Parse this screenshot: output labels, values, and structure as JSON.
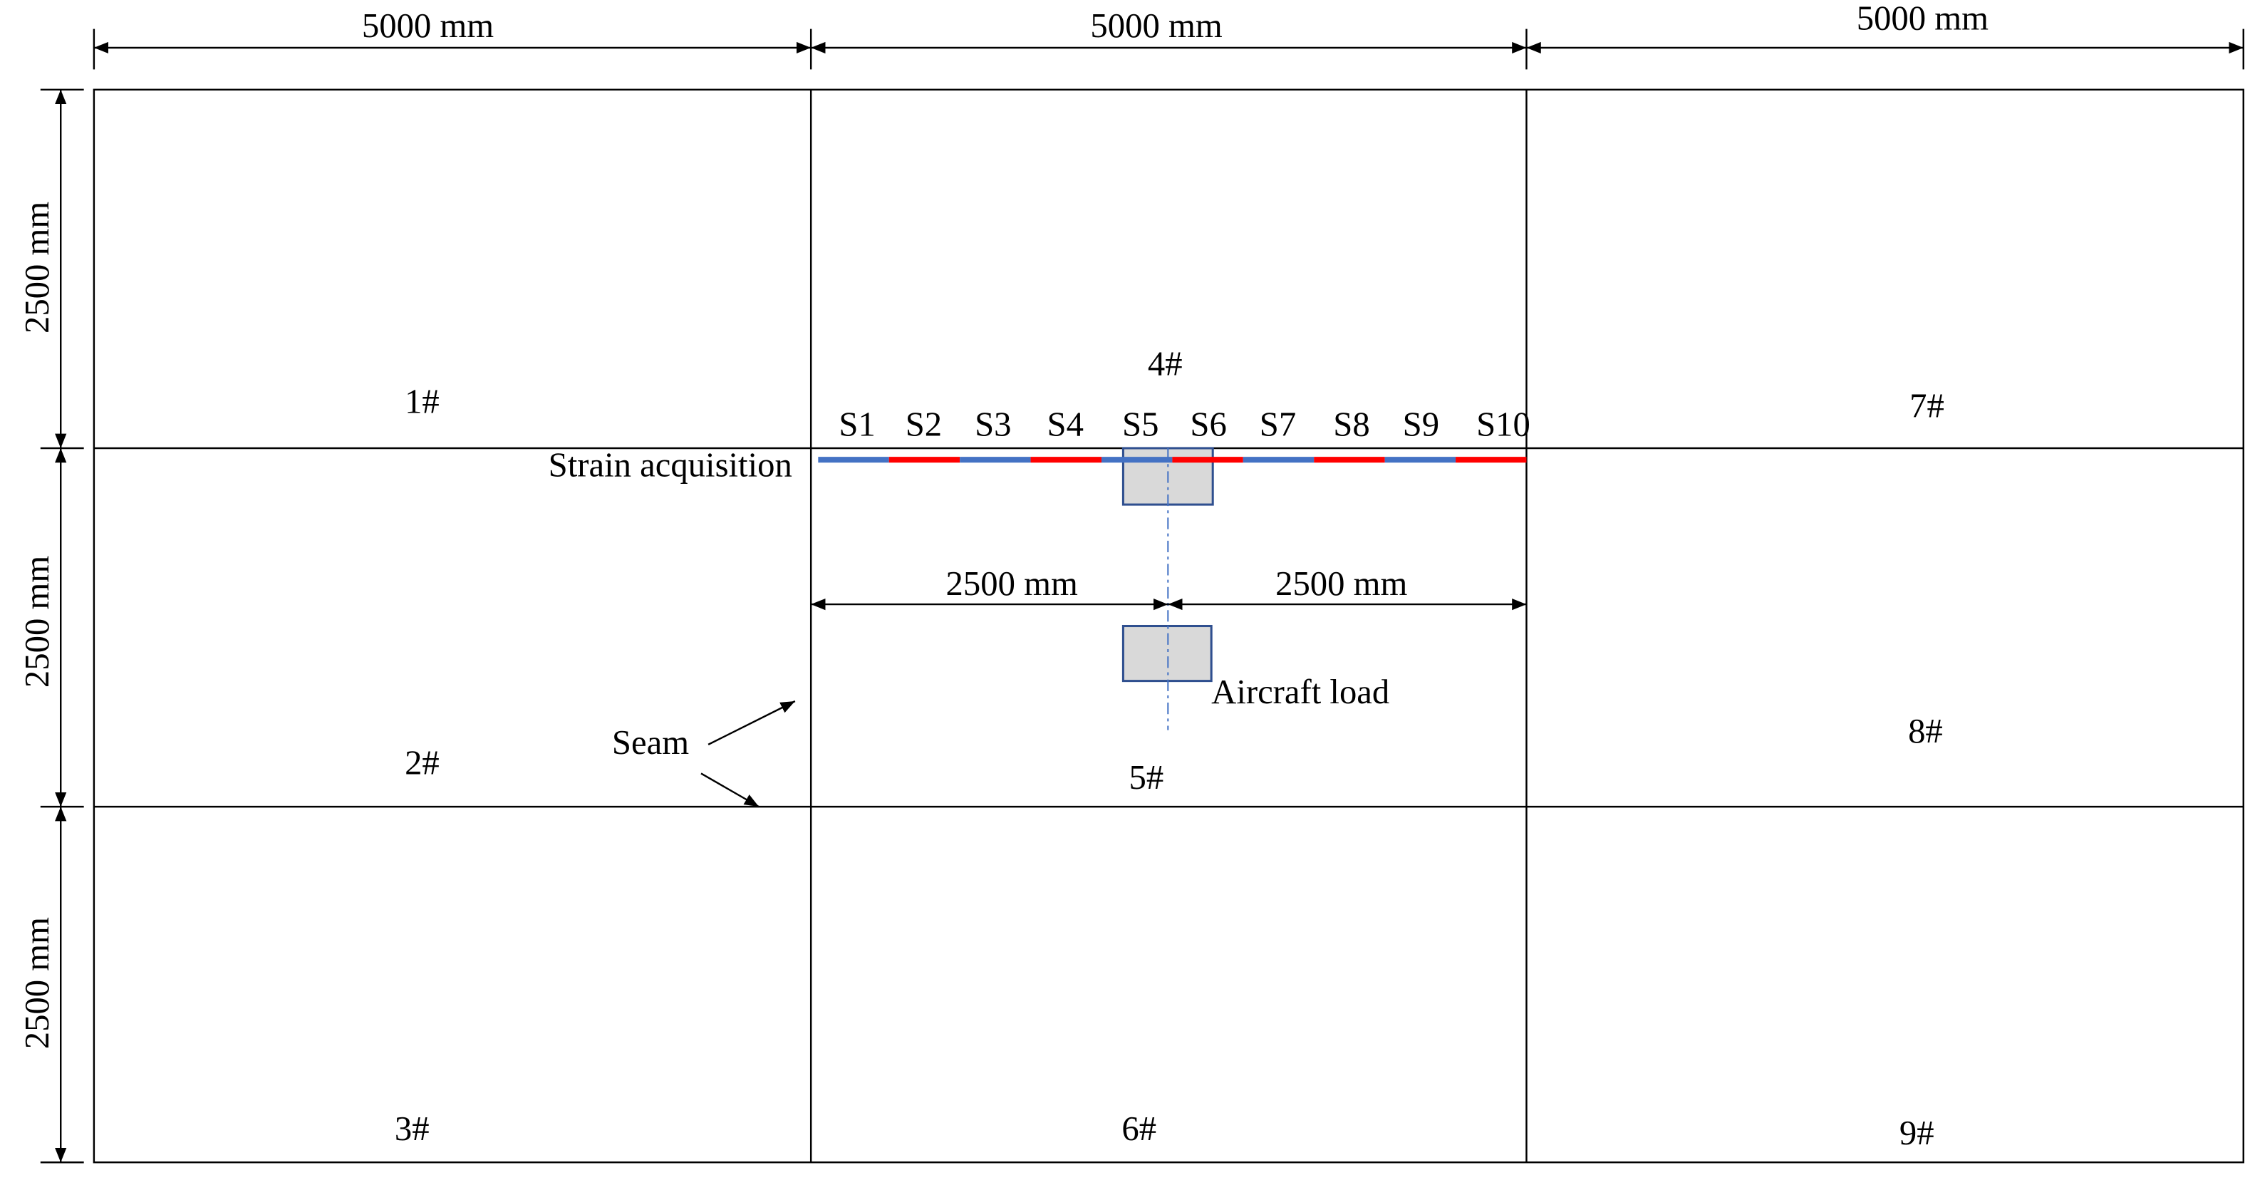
{
  "dimensions": {
    "top": [
      "5000 mm",
      "5000 mm",
      "5000 mm"
    ],
    "left": [
      "2500 mm",
      "2500 mm",
      "2500 mm"
    ],
    "center": [
      "2500 mm",
      "2500 mm"
    ]
  },
  "slabs": [
    "1#",
    "2#",
    "3#",
    "4#",
    "5#",
    "6#",
    "7#",
    "8#",
    "9#"
  ],
  "sensors": [
    "S1",
    "S2",
    "S3",
    "S4",
    "S5",
    "S6",
    "S7",
    "S8",
    "S9",
    "S10"
  ],
  "annotations": {
    "strain": "Strain acquisition",
    "load": "Aircraft load",
    "seam": "Seam"
  }
}
